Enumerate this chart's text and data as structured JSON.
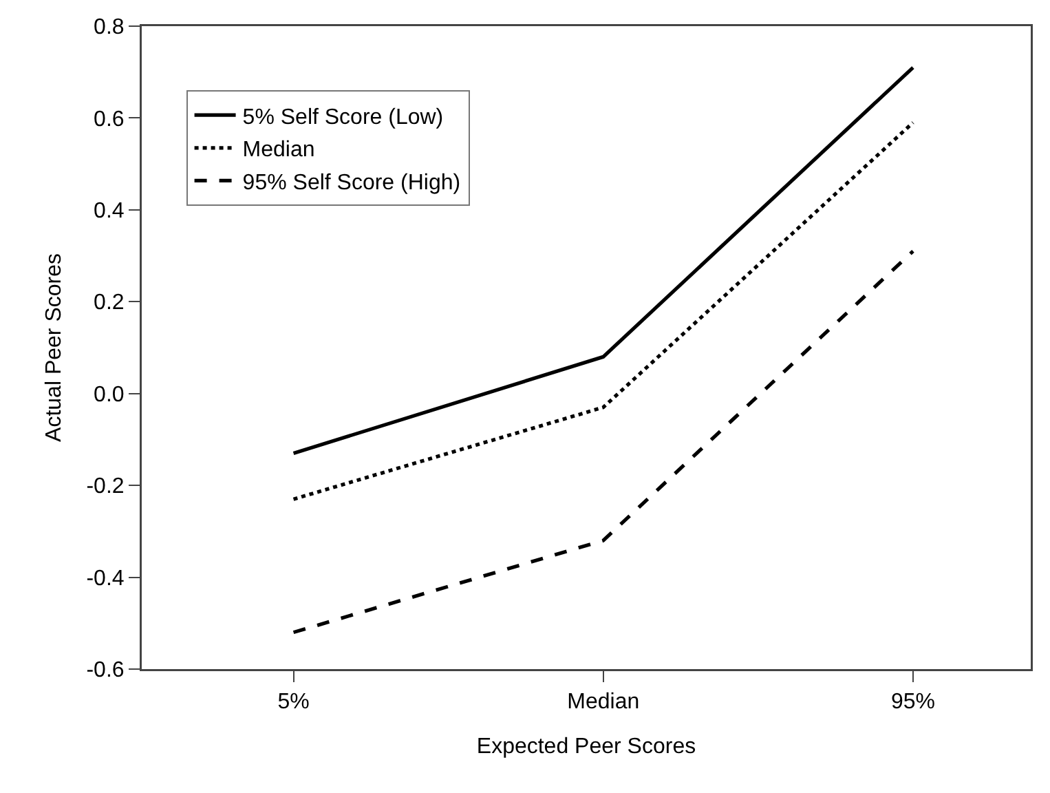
{
  "chart_data": {
    "type": "line",
    "xlabel": "Expected Peer Scores",
    "ylabel": "Actual Peer Scores",
    "categories": [
      "5%",
      "Median",
      "95%"
    ],
    "series": [
      {
        "name": "5% Self Score (Low)",
        "color": "#000000",
        "line_style": "solid",
        "values": [
          -0.13,
          0.08,
          0.71
        ]
      },
      {
        "name": "Median",
        "color": "#000000",
        "line_style": "dotted",
        "values": [
          -0.23,
          -0.03,
          0.59
        ]
      },
      {
        "name": "95% Self Score (High)",
        "color": "#000000",
        "line_style": "dashed",
        "values": [
          -0.52,
          -0.32,
          0.31
        ]
      }
    ],
    "ylim": [
      -0.6,
      0.8
    ],
    "yticks": [
      {
        "value": -0.6,
        "label": "-0.6"
      },
      {
        "value": -0.4,
        "label": "-0.4"
      },
      {
        "value": -0.2,
        "label": "-0.2"
      },
      {
        "value": 0,
        "label": "0.0"
      },
      {
        "value": 0.2,
        "label": "0.2"
      },
      {
        "value": 0.4,
        "label": "0.4"
      },
      {
        "value": 0.6,
        "label": "0.6"
      },
      {
        "value": 0.8,
        "label": "0.8"
      }
    ],
    "grid": false,
    "legend": "top left",
    "marker": "none"
  }
}
